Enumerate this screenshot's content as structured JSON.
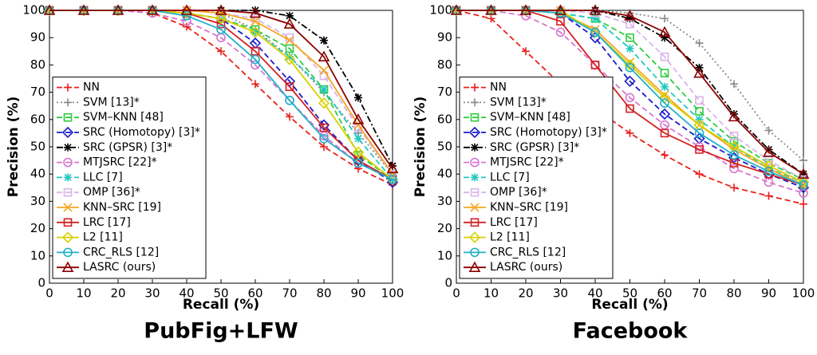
{
  "chart_data": [
    {
      "type": "line",
      "title": "PubFig+LFW",
      "x_label": "Recall (%)",
      "y_label": "Precision (%)",
      "x": [
        0,
        10,
        20,
        30,
        40,
        50,
        60,
        70,
        80,
        90,
        100
      ],
      "xlim": [
        0,
        100
      ],
      "ylim": [
        0,
        100
      ],
      "xticks": [
        0,
        10,
        20,
        30,
        40,
        50,
        60,
        70,
        80,
        90,
        100
      ],
      "yticks": [
        0,
        10,
        20,
        30,
        40,
        50,
        60,
        70,
        80,
        90,
        100
      ],
      "legend": "lower left",
      "series": [
        {
          "name": "NN",
          "color": "#e8211b",
          "line_style": "dashed",
          "marker": "plus",
          "values": [
            100,
            100,
            100,
            99,
            94,
            85,
            73,
            61,
            50,
            42,
            36
          ]
        },
        {
          "name": "SVM [13]*",
          "color": "#8a8a8a",
          "line_style": "dotted",
          "marker": "plus",
          "values": [
            100,
            100,
            100,
            100,
            100,
            99,
            93,
            83,
            70,
            55,
            40
          ]
        },
        {
          "name": "SVM–KNN [48]",
          "color": "#2ecc40",
          "line_style": "dashed",
          "marker": "square",
          "values": [
            100,
            100,
            100,
            100,
            99,
            97,
            93,
            86,
            71,
            47,
            38
          ]
        },
        {
          "name": "SRC (Homotopy) [3]*",
          "color": "#1a1acc",
          "line_style": "dashed",
          "marker": "diamond",
          "values": [
            100,
            100,
            100,
            100,
            99,
            97,
            88,
            74,
            58,
            45,
            37
          ]
        },
        {
          "name": "SRC (GPSR) [3]*",
          "color": "#000000",
          "line_style": "dashdot",
          "marker": "star",
          "values": [
            100,
            100,
            100,
            100,
            100,
            100,
            100,
            98,
            89,
            68,
            43
          ]
        },
        {
          "name": "MTJSRC [22]*",
          "color": "#d874d0",
          "line_style": "dashed",
          "marker": "circle",
          "values": [
            100,
            100,
            100,
            99,
            96,
            90,
            80,
            67,
            54,
            44,
            38
          ]
        },
        {
          "name": "LLC [7]",
          "color": "#20c8c0",
          "line_style": "dashed",
          "marker": "star",
          "values": [
            100,
            100,
            100,
            100,
            99,
            97,
            92,
            83,
            71,
            53,
            38
          ]
        },
        {
          "name": "OMP [36]*",
          "color": "#d8b4e8",
          "line_style": "dashed",
          "marker": "square",
          "values": [
            100,
            100,
            100,
            100,
            100,
            99,
            97,
            90,
            76,
            57,
            40
          ]
        },
        {
          "name": "KNN–SRC [19]",
          "color": "#f5a623",
          "line_style": "solid",
          "marker": "x",
          "values": [
            100,
            100,
            100,
            100,
            100,
            99,
            96,
            89,
            78,
            58,
            40
          ]
        },
        {
          "name": "LRC [17]",
          "color": "#d42020",
          "line_style": "solid",
          "marker": "square",
          "values": [
            100,
            100,
            100,
            100,
            99,
            95,
            85,
            72,
            57,
            45,
            38
          ]
        },
        {
          "name": "L2 [11]",
          "color": "#d8d000",
          "line_style": "solid",
          "marker": "diamond",
          "values": [
            100,
            100,
            100,
            100,
            99,
            97,
            92,
            82,
            66,
            48,
            38
          ]
        },
        {
          "name": "CRC_RLS [12]",
          "color": "#20b0c8",
          "line_style": "solid",
          "marker": "circle",
          "values": [
            100,
            100,
            100,
            100,
            98,
            93,
            82,
            67,
            53,
            44,
            38
          ]
        },
        {
          "name": "LASRC (ours)",
          "color": "#8b0000",
          "line_style": "solid",
          "marker": "triangle",
          "values": [
            100,
            100,
            100,
            100,
            100,
            100,
            99,
            95,
            83,
            60,
            42
          ]
        }
      ]
    },
    {
      "type": "line",
      "title": "Facebook",
      "x_label": "Recall (%)",
      "y_label": "Precision (%)",
      "x": [
        0,
        10,
        20,
        30,
        40,
        50,
        60,
        70,
        80,
        90,
        100
      ],
      "xlim": [
        0,
        100
      ],
      "ylim": [
        0,
        100
      ],
      "xticks": [
        0,
        10,
        20,
        30,
        40,
        50,
        60,
        70,
        80,
        90,
        100
      ],
      "yticks": [
        0,
        10,
        20,
        30,
        40,
        50,
        60,
        70,
        80,
        90,
        100
      ],
      "legend": "lower left",
      "series": [
        {
          "name": "NN",
          "color": "#e8211b",
          "line_style": "dashed",
          "marker": "plus",
          "values": [
            100,
            97,
            85,
            73,
            64,
            55,
            47,
            40,
            35,
            32,
            29
          ]
        },
        {
          "name": "SVM [13]*",
          "color": "#8a8a8a",
          "line_style": "dotted",
          "marker": "plus",
          "values": [
            100,
            100,
            100,
            100,
            100,
            99,
            97,
            88,
            73,
            56,
            45
          ]
        },
        {
          "name": "SVM–KNN [48]",
          "color": "#2ecc40",
          "line_style": "dashed",
          "marker": "square",
          "values": [
            100,
            100,
            100,
            99,
            97,
            90,
            77,
            63,
            52,
            44,
            38
          ]
        },
        {
          "name": "SRC (Homotopy) [3]*",
          "color": "#1a1acc",
          "line_style": "dashed",
          "marker": "diamond",
          "values": [
            100,
            100,
            100,
            99,
            90,
            74,
            62,
            53,
            46,
            40,
            35
          ]
        },
        {
          "name": "SRC (GPSR) [3]*",
          "color": "#000000",
          "line_style": "dashdot",
          "marker": "star",
          "values": [
            100,
            100,
            100,
            100,
            100,
            97,
            90,
            79,
            62,
            49,
            40
          ]
        },
        {
          "name": "MTJSRC [22]*",
          "color": "#d874d0",
          "line_style": "dashed",
          "marker": "circle",
          "values": [
            100,
            100,
            98,
            92,
            80,
            68,
            58,
            50,
            42,
            37,
            33
          ]
        },
        {
          "name": "LLC [7]",
          "color": "#20c8c0",
          "line_style": "dashed",
          "marker": "star",
          "values": [
            100,
            100,
            100,
            99,
            97,
            86,
            72,
            60,
            50,
            42,
            37
          ]
        },
        {
          "name": "OMP [36]*",
          "color": "#d8b4e8",
          "line_style": "dashed",
          "marker": "square",
          "values": [
            100,
            100,
            100,
            100,
            99,
            95,
            83,
            67,
            54,
            45,
            38
          ]
        },
        {
          "name": "KNN–SRC [19]",
          "color": "#f5a623",
          "line_style": "solid",
          "marker": "x",
          "values": [
            100,
            100,
            100,
            99,
            93,
            81,
            69,
            58,
            49,
            42,
            36
          ]
        },
        {
          "name": "LRC [17]",
          "color": "#d42020",
          "line_style": "solid",
          "marker": "square",
          "values": [
            100,
            100,
            100,
            96,
            80,
            64,
            55,
            49,
            44,
            40,
            36
          ]
        },
        {
          "name": "L2 [11]",
          "color": "#d8d000",
          "line_style": "solid",
          "marker": "diamond",
          "values": [
            100,
            100,
            100,
            100,
            92,
            80,
            68,
            58,
            50,
            43,
            37
          ]
        },
        {
          "name": "CRC_RLS [12]",
          "color": "#20b0c8",
          "line_style": "solid",
          "marker": "circle",
          "values": [
            100,
            100,
            100,
            99,
            92,
            79,
            66,
            55,
            47,
            41,
            36
          ]
        },
        {
          "name": "LASRC (ours)",
          "color": "#8b0000",
          "line_style": "solid",
          "marker": "triangle",
          "values": [
            100,
            100,
            100,
            100,
            100,
            98,
            92,
            77,
            61,
            48,
            40
          ]
        }
      ]
    }
  ]
}
